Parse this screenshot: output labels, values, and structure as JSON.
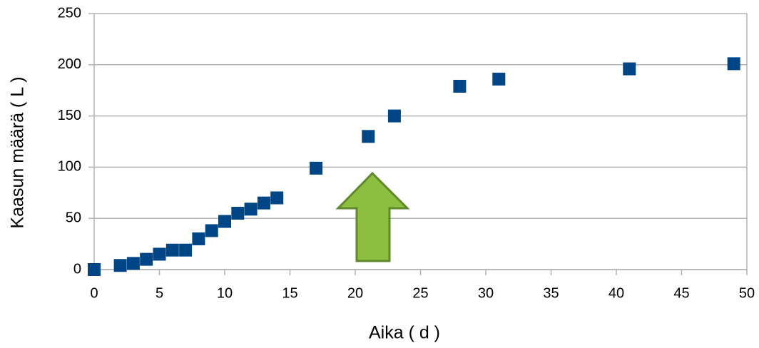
{
  "chart_data": {
    "type": "scatter",
    "x_label": "Aika ( d )",
    "y_label": "Kaasun määrä ( L )",
    "xlim": [
      0,
      50
    ],
    "ylim": [
      0,
      250
    ],
    "xticks": [
      0,
      5,
      10,
      15,
      20,
      25,
      30,
      35,
      40,
      45,
      50
    ],
    "yticks": [
      0,
      50,
      100,
      150,
      200,
      250
    ],
    "grid": true,
    "color": "#004586",
    "x": [
      0,
      2,
      3,
      4,
      5,
      6,
      7,
      8,
      9,
      10,
      11,
      12,
      13,
      14,
      17,
      21,
      23,
      28,
      31,
      41,
      49
    ],
    "values": [
      0,
      4,
      6,
      10,
      15,
      19,
      19,
      30,
      38,
      47,
      55,
      59,
      65,
      70,
      99,
      130,
      150,
      179,
      186,
      196,
      201
    ]
  }
}
